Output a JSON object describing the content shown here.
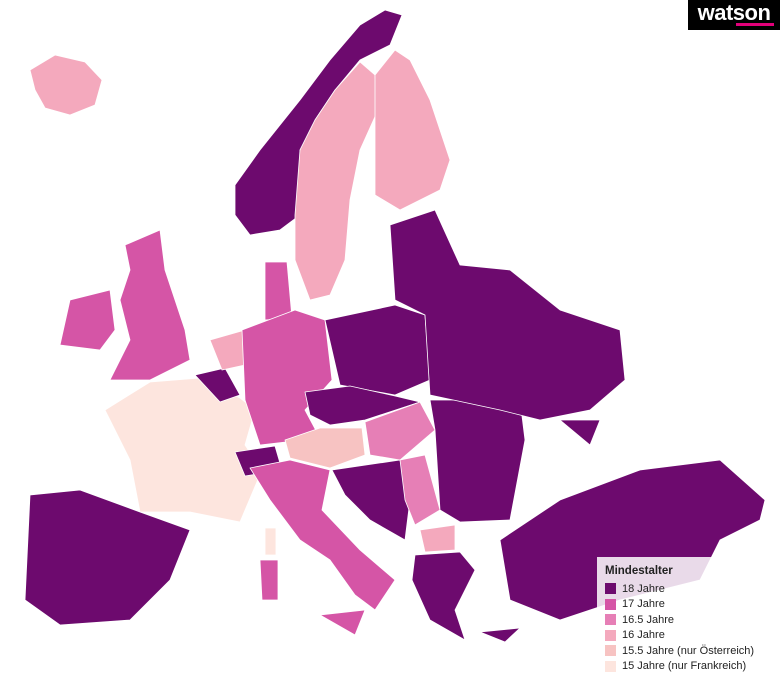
{
  "logo": "watson",
  "legend": {
    "title": "Mindestalter",
    "items": [
      {
        "label": "18 Jahre",
        "color": "#6d0a6e"
      },
      {
        "label": "17 Jahre",
        "color": "#d555a6"
      },
      {
        "label": "16.5 Jahre",
        "color": "#e67fb6"
      },
      {
        "label": "16 Jahre",
        "color": "#f4a9bd"
      },
      {
        "label": "15.5 Jahre (nur Österreich)",
        "color": "#f7c3c2"
      },
      {
        "label": "15 Jahre (nur Frankreich)",
        "color": "#fde5de"
      }
    ]
  }
}
